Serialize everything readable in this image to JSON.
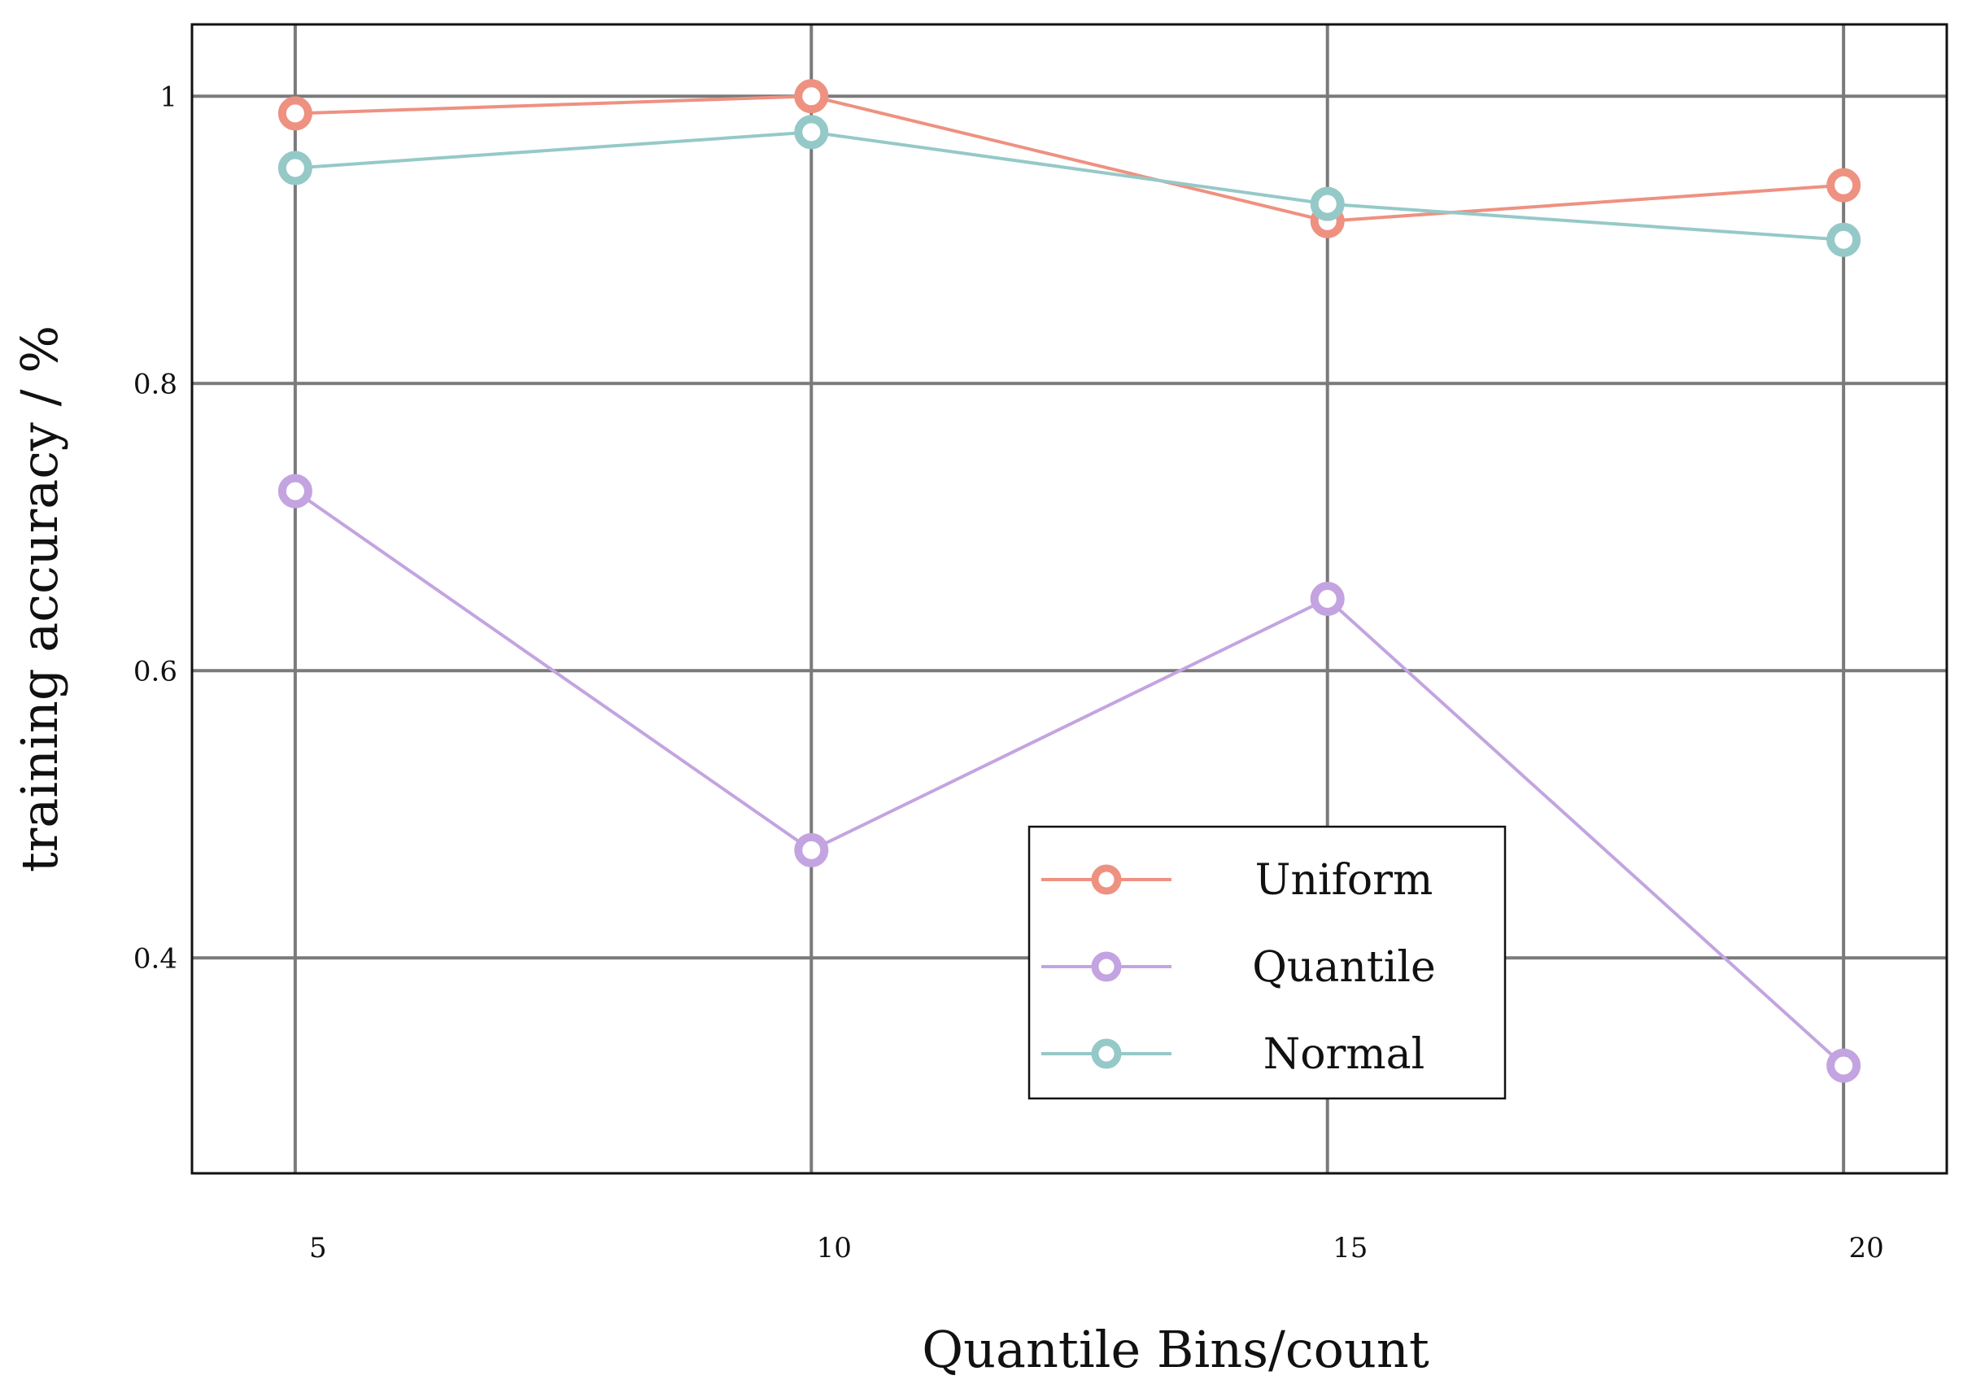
{
  "chart_data": {
    "type": "line",
    "xlabel": "Quantile Bins/count",
    "ylabel": "training accuracy  / %",
    "x": [
      5,
      10,
      15,
      20
    ],
    "x_ticks": [
      5,
      10,
      15,
      20
    ],
    "x_tick_labels": [
      "5",
      "10",
      "15",
      "20"
    ],
    "xlim": [
      4,
      21
    ],
    "y_ticks": [
      0.4,
      0.6,
      0.8,
      1.0
    ],
    "y_tick_labels": [
      "0.4",
      "0.6",
      "0.8",
      "1"
    ],
    "ylim": [
      0.25,
      1.05
    ],
    "grid": true,
    "legend_position": "lower-right",
    "series": [
      {
        "name": "Uniform",
        "color": "#ee9181",
        "values": [
          0.988,
          1.0,
          0.913,
          0.938
        ]
      },
      {
        "name": "Quantile",
        "color": "#c3a4e0",
        "values": [
          0.725,
          0.475,
          0.65,
          0.325
        ]
      },
      {
        "name": "Normal",
        "color": "#95c9c8",
        "values": [
          0.95,
          0.975,
          0.925,
          0.9
        ]
      }
    ]
  }
}
